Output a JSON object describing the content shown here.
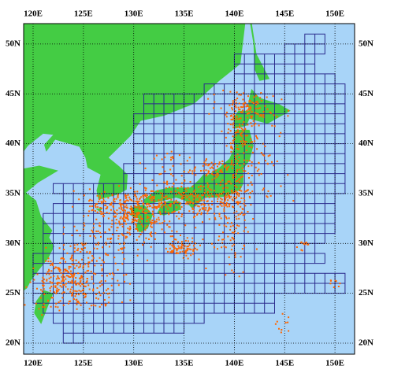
{
  "map": {
    "top_labels": [
      "120E",
      "125E",
      "130E",
      "135E",
      "140E",
      "145E",
      "150E"
    ],
    "bottom_labels": [
      "120E",
      "125E",
      "130E",
      "135E",
      "140E",
      "145E",
      "150E"
    ],
    "left_labels": [
      "50N",
      "45N",
      "40N",
      "35N",
      "30N",
      "25N",
      "20N"
    ],
    "right_labels": [
      "50N",
      "45N",
      "40N",
      "35N",
      "30N",
      "25N",
      "20N"
    ]
  }
}
